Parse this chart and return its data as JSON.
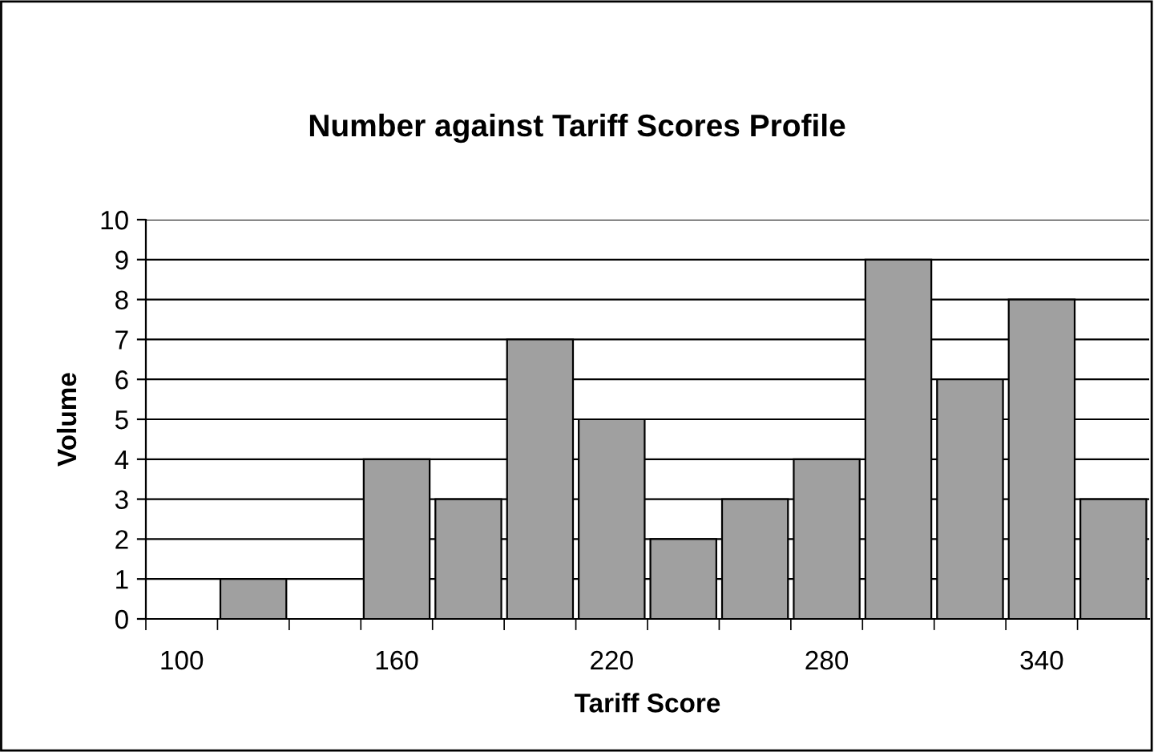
{
  "chart_data": {
    "type": "bar",
    "title": "Number against Tariff Scores Profile",
    "xlabel": "Tariff Score",
    "ylabel": "Volume",
    "categories": [
      "100",
      null,
      null,
      "160",
      null,
      null,
      "220",
      null,
      null,
      "280",
      null,
      null,
      "340",
      null
    ],
    "values": [
      0,
      1,
      0,
      4,
      3,
      7,
      5,
      2,
      3,
      4,
      9,
      6,
      8,
      3
    ],
    "color": "#a0a0a0",
    "ylim": [
      0,
      10
    ],
    "yticks": [
      0,
      1,
      2,
      3,
      4,
      5,
      6,
      7,
      8,
      9,
      10
    ],
    "grid": "y",
    "legend": false
  }
}
